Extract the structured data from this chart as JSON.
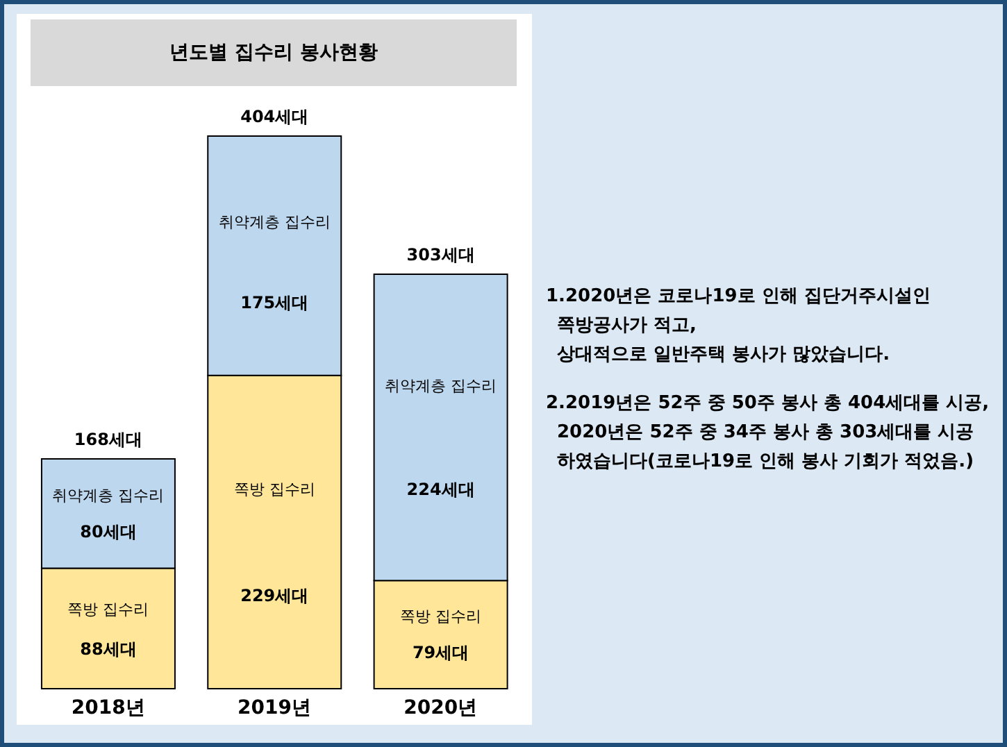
{
  "chart_data": {
    "type": "bar",
    "title": "년도별 집수리 봉사현황",
    "stacked": true,
    "categories": [
      "2018년",
      "2019년",
      "2020년"
    ],
    "series": [
      {
        "name": "쪽방 집수리",
        "color": "#ffe699",
        "values": [
          88,
          229,
          79
        ],
        "value_labels": [
          "88세대",
          "229세대",
          "79세대"
        ]
      },
      {
        "name": "취약계층 집수리",
        "color": "#bdd7ee",
        "values": [
          80,
          175,
          224
        ],
        "value_labels": [
          "80세대",
          "175세대",
          "224세대"
        ]
      }
    ],
    "totals": [
      "168세대",
      "404세대",
      "303세대"
    ],
    "annotations": [
      "1.2020년은 코로나19로 인해 집단거주시설인\n쪽방공사가 적고,\n상대적으로 일반주택 봉사가 많았습니다.",
      "2.2019년은 52주 중 50주 봉사 총 404세대를 시공,\n2020년은 52주 중 34주 봉사 총 303세대를 시공\n하였습니다(코로나19로 인해 봉사 기회가 적었음.)"
    ]
  }
}
